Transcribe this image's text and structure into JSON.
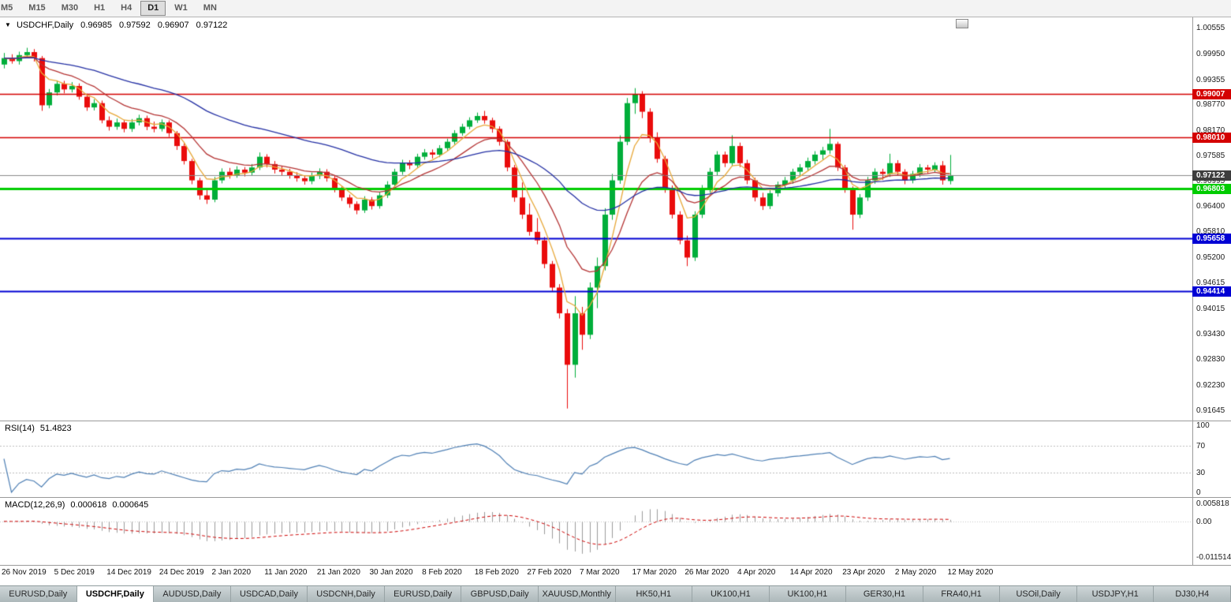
{
  "toolbar": {
    "timeframes": [
      "M5",
      "M15",
      "M30",
      "H1",
      "H4",
      "D1",
      "W1",
      "MN"
    ],
    "active": "D1"
  },
  "chart": {
    "symbol": "USDCHF,Daily",
    "ohlc": {
      "open": "0.96985",
      "high": "0.97592",
      "low": "0.96907",
      "close": "0.97122"
    },
    "current_price": 0.97122,
    "current_price_color": "#3d3d3d",
    "price_line_color": "#8a8a8a",
    "y_axis_labels": [
      1.00555,
      0.9995,
      0.99355,
      0.9877,
      0.9817,
      0.97585,
      0.96995,
      0.964,
      0.9581,
      0.952,
      0.94615,
      0.94015,
      0.9343,
      0.9283,
      0.9223,
      0.91645
    ],
    "levels": [
      {
        "price": 0.99007,
        "label": "0.99007",
        "color": "#d40000",
        "width": 1.5
      },
      {
        "price": 0.9801,
        "label": "0.98010",
        "color": "#d40000",
        "width": 1.5
      },
      {
        "price": 0.96803,
        "label": "0.96803",
        "color": "#00cc00",
        "width": 3
      },
      {
        "price": 0.95658,
        "label": "0.95658",
        "color": "#0000d4",
        "width": 2
      },
      {
        "price": 0.94414,
        "label": "0.94414",
        "color": "#0000d4",
        "width": 2
      }
    ]
  },
  "chart_data": {
    "type": "candlestick",
    "symbol": "USDCHF",
    "timeframe": "Daily",
    "y_range": [
      0.914,
      1.008
    ],
    "colors": {
      "up": "#00ae3a",
      "down": "#ea0c0c"
    },
    "x_labels": [
      {
        "index": 0,
        "text": "26 Nov 2019"
      },
      {
        "index": 7,
        "text": "5 Dec 2019"
      },
      {
        "index": 14,
        "text": "14 Dec 2019"
      },
      {
        "index": 21,
        "text": "24 Dec 2019"
      },
      {
        "index": 28,
        "text": "2 Jan 2020"
      },
      {
        "index": 35,
        "text": "11 Jan 2020"
      },
      {
        "index": 42,
        "text": "21 Jan 2020"
      },
      {
        "index": 49,
        "text": "30 Jan 2020"
      },
      {
        "index": 56,
        "text": "8 Feb 2020"
      },
      {
        "index": 63,
        "text": "18 Feb 2020"
      },
      {
        "index": 70,
        "text": "27 Feb 2020"
      },
      {
        "index": 77,
        "text": "7 Mar 2020"
      },
      {
        "index": 84,
        "text": "17 Mar 2020"
      },
      {
        "index": 91,
        "text": "26 Mar 2020"
      },
      {
        "index": 98,
        "text": "4 Apr 2020"
      },
      {
        "index": 105,
        "text": "14 Apr 2020"
      },
      {
        "index": 112,
        "text": "23 Apr 2020"
      },
      {
        "index": 119,
        "text": "2 May 2020"
      },
      {
        "index": 126,
        "text": "12 May 2020"
      }
    ],
    "ohlc": [
      [
        0.997,
        0.9997,
        0.9961,
        0.9985
      ],
      [
        0.9985,
        0.9994,
        0.9972,
        0.9978
      ],
      [
        0.9978,
        1.0,
        0.997,
        0.9992
      ],
      [
        0.9992,
        1.0009,
        0.9985,
        0.9999
      ],
      [
        0.9999,
        1.0006,
        0.9977,
        0.9985
      ],
      [
        0.9985,
        0.999,
        0.9862,
        0.9875
      ],
      [
        0.9875,
        0.9913,
        0.9868,
        0.9905
      ],
      [
        0.9905,
        0.9933,
        0.9898,
        0.9925
      ],
      [
        0.9925,
        0.9932,
        0.9903,
        0.9912
      ],
      [
        0.9912,
        0.9929,
        0.9905,
        0.992
      ],
      [
        0.992,
        0.9926,
        0.9888,
        0.9895
      ],
      [
        0.9895,
        0.9902,
        0.9862,
        0.987
      ],
      [
        0.987,
        0.9889,
        0.9863,
        0.988
      ],
      [
        0.988,
        0.9886,
        0.9833,
        0.984
      ],
      [
        0.984,
        0.9849,
        0.9816,
        0.9825
      ],
      [
        0.9825,
        0.9844,
        0.9818,
        0.9835
      ],
      [
        0.9835,
        0.9841,
        0.9812,
        0.982
      ],
      [
        0.982,
        0.9843,
        0.9813,
        0.9835
      ],
      [
        0.9835,
        0.9853,
        0.9828,
        0.9845
      ],
      [
        0.9845,
        0.9851,
        0.9817,
        0.9825
      ],
      [
        0.9825,
        0.9837,
        0.9812,
        0.982
      ],
      [
        0.982,
        0.9842,
        0.9814,
        0.9835
      ],
      [
        0.9835,
        0.984,
        0.9801,
        0.981
      ],
      [
        0.981,
        0.9815,
        0.9771,
        0.978
      ],
      [
        0.978,
        0.9786,
        0.9737,
        0.9745
      ],
      [
        0.9745,
        0.975,
        0.9691,
        0.97
      ],
      [
        0.97,
        0.9706,
        0.9655,
        0.9665
      ],
      [
        0.9665,
        0.9678,
        0.9645,
        0.9655
      ],
      [
        0.9655,
        0.9708,
        0.9649,
        0.97
      ],
      [
        0.97,
        0.9728,
        0.9693,
        0.972
      ],
      [
        0.972,
        0.9729,
        0.9704,
        0.9712
      ],
      [
        0.9712,
        0.9733,
        0.9706,
        0.9725
      ],
      [
        0.9725,
        0.9731,
        0.9709,
        0.9718
      ],
      [
        0.9718,
        0.9738,
        0.9711,
        0.973
      ],
      [
        0.973,
        0.9765,
        0.9724,
        0.9755
      ],
      [
        0.9755,
        0.9761,
        0.973,
        0.9738
      ],
      [
        0.9738,
        0.9745,
        0.9716,
        0.9725
      ],
      [
        0.9725,
        0.9734,
        0.9712,
        0.972
      ],
      [
        0.972,
        0.9727,
        0.9704,
        0.9712
      ],
      [
        0.9712,
        0.9719,
        0.9697,
        0.9705
      ],
      [
        0.9705,
        0.9712,
        0.969,
        0.9698
      ],
      [
        0.9698,
        0.9718,
        0.9691,
        0.971
      ],
      [
        0.971,
        0.9728,
        0.9703,
        0.972
      ],
      [
        0.972,
        0.9726,
        0.9697,
        0.9705
      ],
      [
        0.9705,
        0.9711,
        0.9672,
        0.968
      ],
      [
        0.968,
        0.9686,
        0.9652,
        0.966
      ],
      [
        0.966,
        0.9667,
        0.9636,
        0.9645
      ],
      [
        0.9645,
        0.9651,
        0.9621,
        0.963
      ],
      [
        0.963,
        0.9663,
        0.9624,
        0.9655
      ],
      [
        0.9655,
        0.9661,
        0.9632,
        0.964
      ],
      [
        0.964,
        0.9673,
        0.9634,
        0.9665
      ],
      [
        0.9665,
        0.9698,
        0.9659,
        0.969
      ],
      [
        0.969,
        0.9727,
        0.9684,
        0.972
      ],
      [
        0.972,
        0.9748,
        0.9713,
        0.974
      ],
      [
        0.974,
        0.9747,
        0.9726,
        0.9735
      ],
      [
        0.9735,
        0.9762,
        0.9729,
        0.9755
      ],
      [
        0.9755,
        0.9773,
        0.9748,
        0.9765
      ],
      [
        0.9765,
        0.9772,
        0.9751,
        0.976
      ],
      [
        0.976,
        0.9782,
        0.9754,
        0.9775
      ],
      [
        0.9775,
        0.9797,
        0.9769,
        0.979
      ],
      [
        0.979,
        0.9817,
        0.9784,
        0.981
      ],
      [
        0.981,
        0.9832,
        0.9804,
        0.9825
      ],
      [
        0.9825,
        0.9847,
        0.9819,
        0.984
      ],
      [
        0.984,
        0.9858,
        0.9834,
        0.985
      ],
      [
        0.985,
        0.9862,
        0.9832,
        0.984
      ],
      [
        0.984,
        0.9846,
        0.9811,
        0.982
      ],
      [
        0.982,
        0.9826,
        0.9781,
        0.979
      ],
      [
        0.979,
        0.9795,
        0.9721,
        0.973
      ],
      [
        0.973,
        0.9736,
        0.965,
        0.966
      ],
      [
        0.966,
        0.9695,
        0.961,
        0.962
      ],
      [
        0.962,
        0.9646,
        0.9571,
        0.958
      ],
      [
        0.958,
        0.9612,
        0.9551,
        0.956
      ],
      [
        0.956,
        0.9568,
        0.9495,
        0.9505
      ],
      [
        0.9505,
        0.9512,
        0.944,
        0.945
      ],
      [
        0.945,
        0.9458,
        0.9378,
        0.939
      ],
      [
        0.939,
        0.94,
        0.9168,
        0.927
      ],
      [
        0.927,
        0.943,
        0.924,
        0.939
      ],
      [
        0.939,
        0.9405,
        0.9305,
        0.934
      ],
      [
        0.934,
        0.9462,
        0.933,
        0.945
      ],
      [
        0.945,
        0.952,
        0.9402,
        0.95
      ],
      [
        0.95,
        0.9635,
        0.949,
        0.962
      ],
      [
        0.962,
        0.9715,
        0.9608,
        0.97
      ],
      [
        0.97,
        0.9805,
        0.9692,
        0.979
      ],
      [
        0.979,
        0.9892,
        0.9782,
        0.988
      ],
      [
        0.988,
        0.9915,
        0.9855,
        0.99
      ],
      [
        0.99,
        0.9908,
        0.9845,
        0.986
      ],
      [
        0.986,
        0.9868,
        0.9788,
        0.98
      ],
      [
        0.98,
        0.9812,
        0.9741,
        0.975
      ],
      [
        0.975,
        0.9757,
        0.9671,
        0.968
      ],
      [
        0.968,
        0.9688,
        0.9611,
        0.962
      ],
      [
        0.962,
        0.9628,
        0.9551,
        0.956
      ],
      [
        0.956,
        0.9571,
        0.95,
        0.952
      ],
      [
        0.952,
        0.9628,
        0.9512,
        0.962
      ],
      [
        0.962,
        0.9689,
        0.9612,
        0.968
      ],
      [
        0.968,
        0.9729,
        0.9671,
        0.972
      ],
      [
        0.972,
        0.9768,
        0.9712,
        0.976
      ],
      [
        0.976,
        0.9767,
        0.9731,
        0.974
      ],
      [
        0.974,
        0.9805,
        0.9733,
        0.978
      ],
      [
        0.978,
        0.9788,
        0.9731,
        0.974
      ],
      [
        0.974,
        0.9748,
        0.9691,
        0.97
      ],
      [
        0.97,
        0.9706,
        0.9651,
        0.966
      ],
      [
        0.966,
        0.9671,
        0.9631,
        0.964
      ],
      [
        0.964,
        0.9677,
        0.9633,
        0.967
      ],
      [
        0.967,
        0.9697,
        0.9662,
        0.969
      ],
      [
        0.969,
        0.9708,
        0.9681,
        0.97
      ],
      [
        0.97,
        0.9727,
        0.9692,
        0.972
      ],
      [
        0.972,
        0.9738,
        0.9712,
        0.973
      ],
      [
        0.973,
        0.9753,
        0.9722,
        0.9745
      ],
      [
        0.9745,
        0.9768,
        0.9737,
        0.976
      ],
      [
        0.976,
        0.9778,
        0.9748,
        0.977
      ],
      [
        0.977,
        0.982,
        0.9762,
        0.9785
      ],
      [
        0.9785,
        0.979,
        0.9722,
        0.973
      ],
      [
        0.973,
        0.9736,
        0.9671,
        0.968
      ],
      [
        0.968,
        0.9686,
        0.9585,
        0.962
      ],
      [
        0.962,
        0.9668,
        0.9612,
        0.966
      ],
      [
        0.966,
        0.9708,
        0.9652,
        0.97
      ],
      [
        0.97,
        0.9728,
        0.9692,
        0.972
      ],
      [
        0.972,
        0.9727,
        0.9701,
        0.9715
      ],
      [
        0.9715,
        0.9762,
        0.9708,
        0.974
      ],
      [
        0.974,
        0.9747,
        0.9712,
        0.972
      ],
      [
        0.972,
        0.9726,
        0.9691,
        0.97
      ],
      [
        0.97,
        0.9722,
        0.9693,
        0.9715
      ],
      [
        0.9715,
        0.9738,
        0.9708,
        0.973
      ],
      [
        0.973,
        0.9736,
        0.9716,
        0.9725
      ],
      [
        0.9725,
        0.9742,
        0.9718,
        0.9735
      ],
      [
        0.9735,
        0.9745,
        0.969,
        0.97
      ],
      [
        0.96985,
        0.97592,
        0.96907,
        0.97122
      ]
    ],
    "indicators": {
      "moving_averages": [
        {
          "period": 5,
          "color": "#e8a838"
        },
        {
          "period": 12,
          "color": "#b53434"
        },
        {
          "period": 40,
          "color": "#2430a4"
        }
      ],
      "rsi": {
        "period": 14,
        "color": "#4e7fb4"
      },
      "macd": {
        "fast": 12,
        "slow": 26,
        "signal": 9,
        "histogram_color": "#9b9b9b",
        "signal_color": "#cc0000"
      }
    }
  },
  "rsi": {
    "label": "RSI(14)",
    "value": "51.4823",
    "color": "#4e7fb4",
    "guide_levels": [
      70,
      30
    ],
    "axis_labels": [
      100,
      70,
      30,
      0
    ]
  },
  "macd": {
    "label": "MACD(12,26,9)",
    "value_macd": "0.000618",
    "value_signal": "0.000645",
    "axis_labels": [
      "0.005818",
      "0.00",
      "-0.011514"
    ],
    "axis_values": [
      0.005818,
      0,
      -0.011514
    ]
  },
  "tabs": {
    "active_index": 1,
    "items": [
      "EURUSD,Daily",
      "USDCHF,Daily",
      "AUDUSD,Daily",
      "USDCAD,Daily",
      "USDCNH,Daily",
      "EURUSD,Daily",
      "GBPUSD,Daily",
      "XAUUSD,Monthly",
      "HK50,H1",
      "UK100,H1",
      "UK100,H1",
      "GER30,H1",
      "FRA40,H1",
      "USOil,Daily",
      "USDJPY,H1",
      "DJ30,H4"
    ]
  }
}
